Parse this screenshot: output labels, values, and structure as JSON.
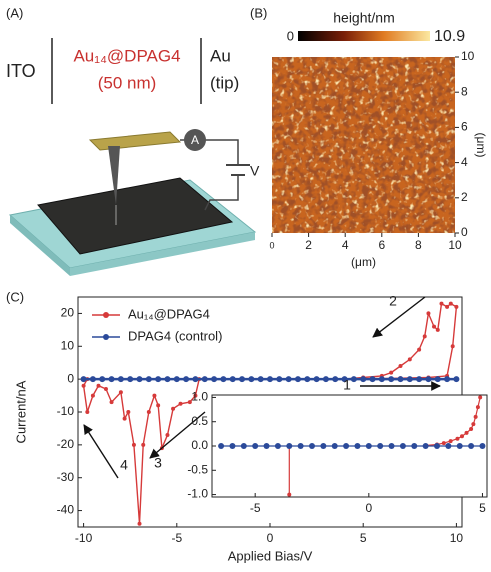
{
  "panel_labels": [
    "(A)",
    "(B)",
    "(C)"
  ],
  "schematic": {
    "left": "ITO",
    "middle": [
      "Au₁₄@DPAG4",
      "(50 nm)"
    ],
    "right": [
      "Au",
      "(tip)"
    ],
    "meter": "A",
    "source": "V"
  },
  "chart_data": [
    {
      "type": "image",
      "colorbar_label": "height/nm",
      "colorbar_lim": [
        0,
        10.9
      ],
      "colorbar_ticks": [
        0,
        10.9
      ],
      "xlim": [
        0,
        10
      ],
      "xticks": [
        0,
        2,
        4,
        6,
        8,
        10
      ],
      "ylim": [
        0,
        10
      ],
      "yticks": [
        0,
        2,
        4,
        6,
        8,
        10
      ],
      "x_label": "(μm)",
      "y_label": "(μm)"
    },
    {
      "type": "line",
      "x_label": "Applied Bias/V",
      "y_label": "Current/nA",
      "xlim": [
        -10.3,
        10.3
      ],
      "xticks": [
        -10,
        -5,
        0,
        5,
        10
      ],
      "ylim": [
        -45,
        25
      ],
      "yticks": [
        20,
        10,
        0,
        -10,
        -20,
        -30,
        -40
      ],
      "legend": "upper left",
      "annotations": [
        "1",
        "2",
        "3",
        "4"
      ],
      "series": [
        {
          "name": "Au₁₄@DPAG4",
          "color": "#d63a3a",
          "x": [
            -3.8,
            -4.0,
            -4.3,
            -4.8,
            -5.2,
            -5.5,
            -5.8,
            -6.0,
            -6.2,
            -6.5,
            -6.8,
            -7.0,
            -7.3,
            -7.6,
            -7.8,
            -8.0,
            -8.5,
            -8.8,
            -9.2,
            -9.5,
            -9.8,
            -10.0,
            -9.8,
            0,
            3,
            5,
            7,
            8.5,
            9.5,
            9.8,
            10,
            9.7,
            9.5,
            9.2,
            9,
            8.8,
            8.5,
            8.3,
            8,
            7.5,
            7,
            6.5,
            6,
            5,
            4
          ],
          "values": [
            0,
            -5,
            -7,
            -7.5,
            -9,
            -17,
            -21,
            -8,
            -5,
            -10,
            -20,
            -44,
            -20,
            -10,
            -12,
            -4,
            -7,
            -3,
            -2,
            -5,
            -10,
            -2,
            0,
            0,
            0,
            0.1,
            0.3,
            0.5,
            1,
            10,
            22,
            23,
            22,
            23,
            15,
            16,
            20,
            13,
            9,
            6,
            4,
            2,
            1,
            0.5,
            0
          ]
        },
        {
          "name": "DPAG4 (control)",
          "color": "#2b4a9a",
          "x": [
            -10,
            -9.5,
            -9,
            -8.5,
            -8,
            -7.5,
            -7,
            -6.5,
            -6,
            -5.5,
            -5,
            -4.5,
            -4,
            -3.5,
            -3,
            -2.5,
            -2,
            -1.5,
            -1,
            -0.5,
            0,
            0.5,
            1,
            1.5,
            2,
            2.5,
            3,
            3.5,
            4,
            4.5,
            5,
            5.5,
            6,
            6.5,
            7,
            7.5,
            8,
            8.5,
            9,
            9.5,
            10
          ],
          "values": [
            0,
            0,
            0,
            0,
            0,
            0,
            0,
            0,
            0,
            0,
            0,
            0,
            0,
            0,
            0,
            0,
            0,
            0,
            0,
            0,
            0,
            0,
            0,
            0,
            0,
            0,
            0,
            0,
            0,
            0,
            0,
            0,
            0,
            0,
            0,
            0,
            0,
            0,
            0,
            0,
            0
          ]
        }
      ]
    },
    {
      "type": "line",
      "inset": true,
      "xlim": [
        -6.9,
        5.2
      ],
      "xticks": [
        -5,
        0,
        5
      ],
      "ylim": [
        -1.05,
        1.05
      ],
      "yticks": [
        {
          "value": 1,
          "label": "1.0"
        },
        {
          "value": 0.5,
          "label": "0.5"
        },
        {
          "value": 0,
          "label": "0.0"
        },
        {
          "value": -0.5,
          "label": "-0.5"
        },
        {
          "value": -1,
          "label": "-1.0"
        }
      ],
      "series": [
        {
          "color": "#d63a3a",
          "x": [
            -3.5,
            -3.5,
            0,
            2.5,
            3,
            3.3,
            3.6,
            3.9,
            4.1,
            4.3,
            4.5,
            4.6,
            4.7,
            4.8,
            4.9
          ],
          "values": [
            0,
            -1,
            null,
            0.01,
            0.03,
            0.06,
            0.1,
            0.15,
            0.2,
            0.27,
            0.35,
            0.45,
            0.6,
            0.8,
            1
          ]
        },
        {
          "color": "#2b4a9a",
          "x": [
            -6.5,
            -6,
            -5.5,
            -5,
            -4.5,
            -4,
            -3.5,
            -3,
            -2.5,
            -2,
            -1.5,
            -1,
            -0.5,
            0,
            0.5,
            1,
            1.5,
            2,
            2.5,
            3,
            3.5,
            4,
            4.5,
            5
          ],
          "values": [
            0,
            0,
            0,
            0,
            0,
            0,
            0,
            0,
            0,
            0,
            0,
            0,
            0,
            0,
            0,
            0,
            0,
            0,
            0,
            0,
            0,
            0,
            0,
            0
          ]
        }
      ]
    }
  ]
}
